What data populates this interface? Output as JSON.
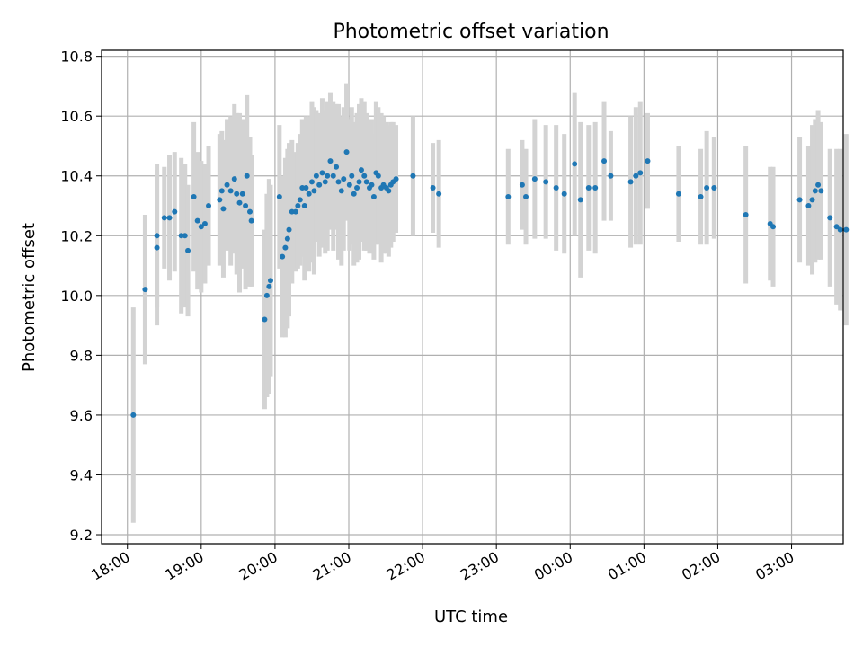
{
  "chart_data": {
    "type": "scatter",
    "title": "Photometric offset variation",
    "xlabel": "UTC time",
    "ylabel": "Photometric offset",
    "x_unit": "hours since 18:00 UTC",
    "xlim": [
      -0.35,
      9.7
    ],
    "ylim": [
      9.17,
      10.82
    ],
    "grid": true,
    "x_ticks": [
      {
        "value": 0,
        "label": "18:00"
      },
      {
        "value": 1,
        "label": "19:00"
      },
      {
        "value": 2,
        "label": "20:00"
      },
      {
        "value": 3,
        "label": "21:00"
      },
      {
        "value": 4,
        "label": "22:00"
      },
      {
        "value": 5,
        "label": "23:00"
      },
      {
        "value": 6,
        "label": "00:00"
      },
      {
        "value": 7,
        "label": "01:00"
      },
      {
        "value": 8,
        "label": "02:00"
      },
      {
        "value": 9,
        "label": "03:00"
      }
    ],
    "y_ticks": [
      {
        "value": 9.2,
        "label": "9.2"
      },
      {
        "value": 9.4,
        "label": "9.4"
      },
      {
        "value": 9.6,
        "label": "9.6"
      },
      {
        "value": 9.8,
        "label": "9.8"
      },
      {
        "value": 10.0,
        "label": "10.0"
      },
      {
        "value": 10.2,
        "label": "10.2"
      },
      {
        "value": 10.4,
        "label": "10.4"
      },
      {
        "value": 10.6,
        "label": "10.6"
      },
      {
        "value": 10.8,
        "label": "10.8"
      }
    ],
    "point_color": "#1f77b4",
    "errorbar_color": "#d3d3d3",
    "points": [
      [
        0.08,
        9.6,
        0.36
      ],
      [
        0.24,
        10.02,
        0.25
      ],
      [
        0.4,
        10.2,
        0.24
      ],
      [
        0.4,
        10.16,
        0.26
      ],
      [
        0.5,
        10.26,
        0.17
      ],
      [
        0.57,
        10.26,
        0.21
      ],
      [
        0.64,
        10.28,
        0.2
      ],
      [
        0.73,
        10.2,
        0.26
      ],
      [
        0.78,
        10.2,
        0.24
      ],
      [
        0.82,
        10.15,
        0.22
      ],
      [
        0.9,
        10.33,
        0.25
      ],
      [
        0.95,
        10.25,
        0.23
      ],
      [
        1.0,
        10.23,
        0.22
      ],
      [
        1.05,
        10.24,
        0.2
      ],
      [
        1.1,
        10.3,
        0.2
      ],
      [
        1.25,
        10.32,
        0.22
      ],
      [
        1.28,
        10.35,
        0.2
      ],
      [
        1.3,
        10.29,
        0.23
      ],
      [
        1.35,
        10.37,
        0.22
      ],
      [
        1.4,
        10.35,
        0.25
      ],
      [
        1.45,
        10.39,
        0.25
      ],
      [
        1.48,
        10.34,
        0.27
      ],
      [
        1.52,
        10.31,
        0.3
      ],
      [
        1.56,
        10.34,
        0.25
      ],
      [
        1.6,
        10.3,
        0.28
      ],
      [
        1.62,
        10.4,
        0.27
      ],
      [
        1.66,
        10.28,
        0.25
      ],
      [
        1.68,
        10.25,
        0.22
      ],
      [
        1.86,
        9.92,
        0.3
      ],
      [
        1.89,
        10.0,
        0.34
      ],
      [
        1.92,
        10.03,
        0.36
      ],
      [
        1.94,
        10.05,
        0.32
      ],
      [
        2.06,
        10.33,
        0.24
      ],
      [
        2.1,
        10.13,
        0.27
      ],
      [
        2.14,
        10.16,
        0.3
      ],
      [
        2.17,
        10.19,
        0.3
      ],
      [
        2.19,
        10.22,
        0.29
      ],
      [
        2.23,
        10.28,
        0.24
      ],
      [
        2.28,
        10.28,
        0.2
      ],
      [
        2.31,
        10.3,
        0.21
      ],
      [
        2.34,
        10.32,
        0.22
      ],
      [
        2.37,
        10.36,
        0.23
      ],
      [
        2.4,
        10.3,
        0.25
      ],
      [
        2.42,
        10.36,
        0.24
      ],
      [
        2.46,
        10.34,
        0.26
      ],
      [
        2.5,
        10.38,
        0.27
      ],
      [
        2.53,
        10.35,
        0.28
      ],
      [
        2.56,
        10.4,
        0.22
      ],
      [
        2.6,
        10.37,
        0.24
      ],
      [
        2.64,
        10.41,
        0.25
      ],
      [
        2.68,
        10.38,
        0.24
      ],
      [
        2.71,
        10.4,
        0.25
      ],
      [
        2.75,
        10.45,
        0.23
      ],
      [
        2.79,
        10.4,
        0.25
      ],
      [
        2.83,
        10.43,
        0.21
      ],
      [
        2.86,
        10.38,
        0.26
      ],
      [
        2.9,
        10.35,
        0.25
      ],
      [
        2.93,
        10.39,
        0.24
      ],
      [
        2.97,
        10.48,
        0.23
      ],
      [
        3.01,
        10.37,
        0.22
      ],
      [
        3.04,
        10.4,
        0.23
      ],
      [
        3.07,
        10.34,
        0.24
      ],
      [
        3.11,
        10.36,
        0.25
      ],
      [
        3.14,
        10.38,
        0.26
      ],
      [
        3.17,
        10.42,
        0.24
      ],
      [
        3.21,
        10.4,
        0.25
      ],
      [
        3.24,
        10.38,
        0.23
      ],
      [
        3.28,
        10.36,
        0.22
      ],
      [
        3.31,
        10.37,
        0.22
      ],
      [
        3.34,
        10.33,
        0.21
      ],
      [
        3.37,
        10.41,
        0.24
      ],
      [
        3.4,
        10.4,
        0.23
      ],
      [
        3.44,
        10.36,
        0.25
      ],
      [
        3.47,
        10.37,
        0.23
      ],
      [
        3.51,
        10.36,
        0.22
      ],
      [
        3.54,
        10.35,
        0.22
      ],
      [
        3.57,
        10.37,
        0.21
      ],
      [
        3.6,
        10.38,
        0.2
      ],
      [
        3.64,
        10.39,
        0.18
      ],
      [
        3.87,
        10.4,
        0.2
      ],
      [
        4.14,
        10.36,
        0.15
      ],
      [
        4.22,
        10.34,
        0.18
      ],
      [
        5.16,
        10.33,
        0.16
      ],
      [
        5.35,
        10.37,
        0.15
      ],
      [
        5.4,
        10.33,
        0.16
      ],
      [
        5.52,
        10.39,
        0.2
      ],
      [
        5.67,
        10.38,
        0.19
      ],
      [
        5.81,
        10.36,
        0.21
      ],
      [
        5.92,
        10.34,
        0.2
      ],
      [
        6.06,
        10.44,
        0.24
      ],
      [
        6.14,
        10.32,
        0.26
      ],
      [
        6.25,
        10.36,
        0.21
      ],
      [
        6.34,
        10.36,
        0.22
      ],
      [
        6.46,
        10.45,
        0.2
      ],
      [
        6.55,
        10.4,
        0.15
      ],
      [
        6.82,
        10.38,
        0.22
      ],
      [
        6.89,
        10.4,
        0.23
      ],
      [
        6.95,
        10.41,
        0.24
      ],
      [
        7.05,
        10.45,
        0.16
      ],
      [
        7.47,
        10.34,
        0.16
      ],
      [
        7.77,
        10.33,
        0.16
      ],
      [
        7.85,
        10.36,
        0.19
      ],
      [
        7.95,
        10.36,
        0.17
      ],
      [
        8.38,
        10.27,
        0.23
      ],
      [
        8.71,
        10.24,
        0.19
      ],
      [
        8.75,
        10.23,
        0.2
      ],
      [
        9.11,
        10.32,
        0.21
      ],
      [
        9.23,
        10.3,
        0.2
      ],
      [
        9.28,
        10.32,
        0.25
      ],
      [
        9.32,
        10.35,
        0.24
      ],
      [
        9.36,
        10.37,
        0.25
      ],
      [
        9.4,
        10.35,
        0.23
      ],
      [
        9.52,
        10.26,
        0.23
      ],
      [
        9.61,
        10.23,
        0.26
      ],
      [
        9.66,
        10.22,
        0.27
      ],
      [
        9.74,
        10.22,
        0.32
      ]
    ]
  }
}
